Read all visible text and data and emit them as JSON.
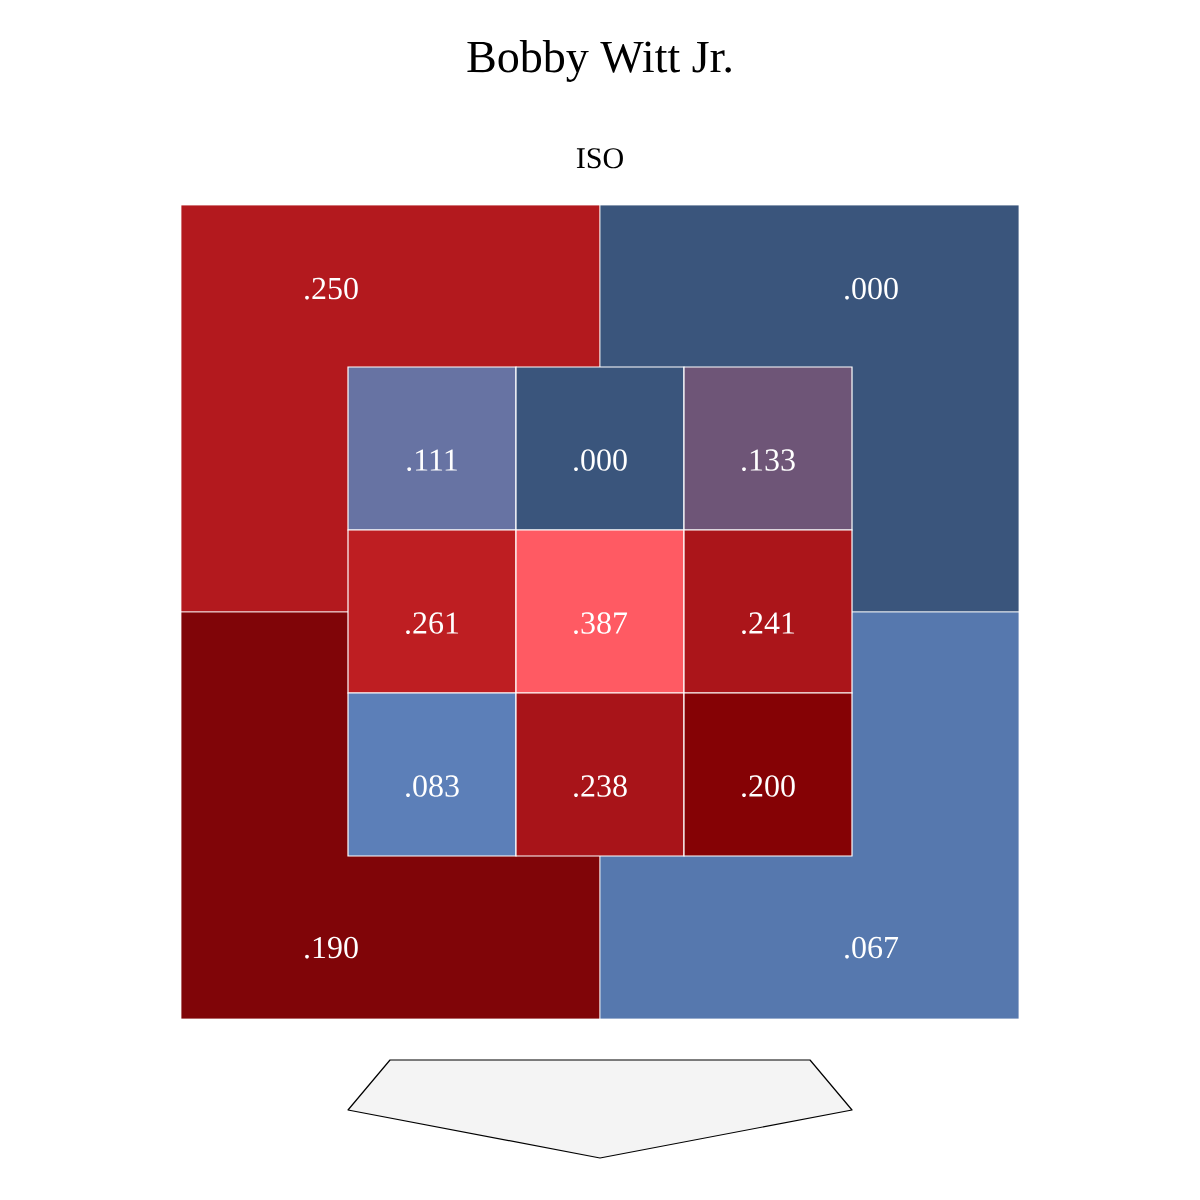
{
  "chart_data": [
    {
      "type": "heatmap",
      "title": "Bobby Witt Jr.",
      "subtitle": "ISO",
      "categories": [
        null,
        null
      ],
      "y_categories": [
        null,
        null
      ],
      "cells": [
        [
          0.25,
          0.0
        ],
        [
          0.19,
          0.067
        ]
      ],
      "cell_labels": [
        [
          ".250",
          ".000"
        ],
        [
          ".190",
          ".067"
        ]
      ]
    },
    {
      "type": "heatmap",
      "categories": [
        null,
        null,
        null
      ],
      "y_categories": [
        null,
        null,
        null
      ],
      "cells": [
        [
          0.111,
          0.0,
          0.133
        ],
        [
          0.261,
          0.387,
          0.241
        ],
        [
          0.083,
          0.238,
          0.2
        ]
      ],
      "cell_labels": [
        [
          ".111",
          ".000",
          ".133"
        ],
        [
          ".261",
          ".387",
          ".241"
        ],
        [
          ".083",
          ".238",
          ".200"
        ]
      ]
    }
  ]
}
